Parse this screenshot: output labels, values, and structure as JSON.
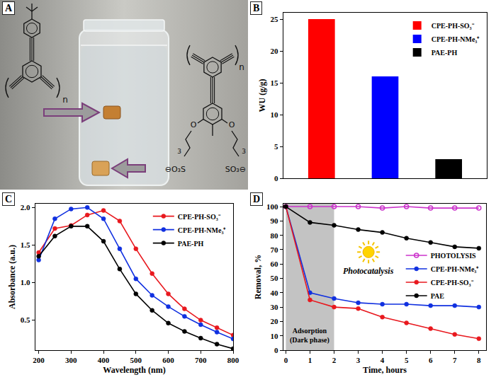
{
  "panel_a": {
    "panel_label": "A",
    "structure_1": {
      "repeat_label": "n"
    },
    "structure_2": {
      "repeat_label": "n",
      "oxygens": [
        "O",
        "O"
      ],
      "end_groups": [
        "⊖O₃S",
        "SO₃⊖"
      ],
      "chain_lengths": [
        3,
        3
      ]
    }
  },
  "chart_data": [
    {
      "panel_label": "B",
      "type": "bar",
      "ylabel": "WU (g/g)",
      "categories": [
        null,
        null,
        null
      ],
      "series": [
        {
          "name": "CPE-PH-SO₃⁻",
          "color": "#ff0000",
          "values": [
            25,
            null,
            null
          ]
        },
        {
          "name": "CPE-PH-NMe₃⁺",
          "color": "#0000ff",
          "values": [
            null,
            16,
            null
          ]
        },
        {
          "name": "PAE-PH",
          "color": "#000000",
          "values": [
            null,
            null,
            3
          ]
        }
      ],
      "ylim": [
        0,
        26
      ],
      "yticks": [
        0,
        5,
        10,
        15,
        20,
        25
      ],
      "grid": false,
      "legend": "top right",
      "tick_labels": "y"
    },
    {
      "panel_label": "C",
      "type": "line",
      "xlabel": "Wavelength (nm)",
      "ylabel": "Absorbance (a.u.)",
      "x": [
        200,
        250,
        300,
        350,
        400,
        450,
        500,
        550,
        600,
        650,
        700,
        750,
        800
      ],
      "series": [
        {
          "name": "CPE-PH-SO₃⁻",
          "color": "#e8181e",
          "marker": "circle",
          "line_style": "solid",
          "values": [
            1.4,
            1.72,
            1.76,
            1.9,
            1.96,
            1.82,
            1.45,
            1.12,
            0.85,
            0.65,
            0.5,
            0.4,
            0.3
          ]
        },
        {
          "name": "CPE-PH-NMe₃⁺",
          "color": "#1030e0",
          "marker": "circle",
          "line_style": "solid",
          "values": [
            1.3,
            1.85,
            1.98,
            2.0,
            1.85,
            1.45,
            1.05,
            0.83,
            0.68,
            0.55,
            0.44,
            0.34,
            0.25
          ]
        },
        {
          "name": "PAE-PH",
          "color": "#000000",
          "marker": "circle",
          "line_style": "solid",
          "values": [
            1.35,
            1.62,
            1.75,
            1.75,
            1.55,
            1.18,
            0.85,
            0.63,
            0.46,
            0.35,
            0.26,
            0.18,
            0.12
          ]
        }
      ],
      "xlim": [
        190,
        800
      ],
      "xticks": [
        200,
        300,
        400,
        500,
        600,
        700,
        800
      ],
      "ylim": [
        0.1,
        2.05
      ],
      "yticks": [
        0.5,
        {
          "value": 1,
          "label": "1.0"
        },
        1.5,
        {
          "value": 2,
          "label": "2.0"
        }
      ],
      "grid": false,
      "legend": "top right"
    },
    {
      "panel_label": "D",
      "type": "line",
      "xlabel": "Time, hours",
      "ylabel": "Removal, %",
      "x": [
        0,
        1,
        2,
        3,
        4,
        5,
        6,
        7,
        8
      ],
      "series": [
        {
          "name": "PHOTOLYSIS",
          "color": "#cc33cc",
          "marker": "circle-open",
          "line_style": "solid",
          "values": [
            100,
            100,
            100,
            100,
            99,
            100,
            99,
            99,
            99
          ]
        },
        {
          "name": "CPE-PH-NMe₃⁺",
          "color": "#1030e0",
          "marker": "circle",
          "line_style": "solid",
          "values": [
            100,
            40,
            36,
            33,
            32,
            32,
            31,
            31,
            30
          ]
        },
        {
          "name": "CPE-PH-SO₃⁻",
          "color": "#e8181e",
          "marker": "circle",
          "line_style": "solid",
          "values": [
            100,
            35,
            30,
            29,
            23,
            19,
            15,
            11,
            8
          ]
        },
        {
          "name": "PAE",
          "color": "#000000",
          "marker": "circle",
          "line_style": "solid",
          "values": [
            100,
            89,
            87,
            84,
            82,
            78,
            75,
            72,
            71
          ]
        }
      ],
      "xlim": [
        -0.1,
        8.3
      ],
      "xticks": [
        0,
        1,
        2,
        3,
        4,
        5,
        6,
        7,
        8
      ],
      "ylim": [
        0,
        102
      ],
      "yticks": [
        0,
        10,
        20,
        30,
        40,
        50,
        60,
        70,
        80,
        90,
        100
      ],
      "grid": false,
      "legend": "right",
      "annotations": [
        "Photocatalysis"
      ],
      "shaded_region": {
        "x": [
          0,
          2
        ],
        "label": "Adsorption (Dark phase)"
      }
    }
  ]
}
